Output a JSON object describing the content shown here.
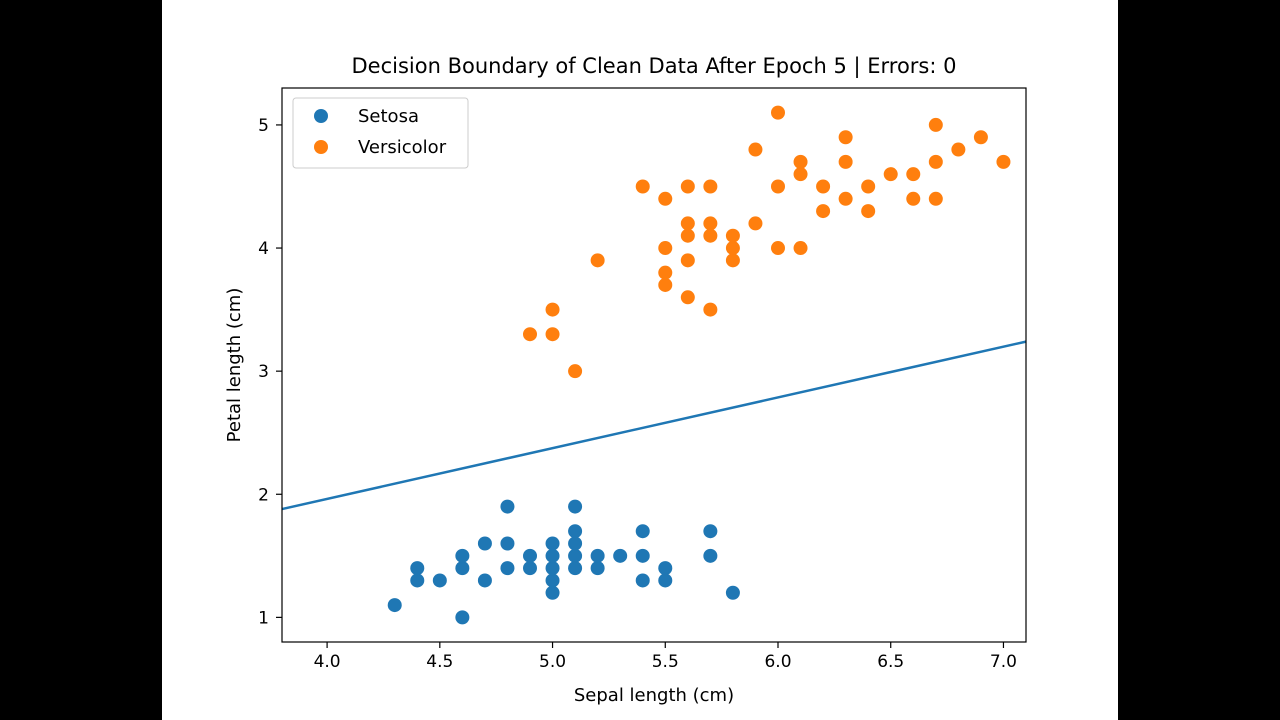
{
  "chart_data": {
    "type": "scatter",
    "title": "Decision Boundary of Clean Data After Epoch 5 | Errors: 0",
    "xlabel": "Sepal length (cm)",
    "ylabel": "Petal length (cm)",
    "xlim": [
      3.8,
      7.1
    ],
    "ylim": [
      0.8,
      5.3
    ],
    "xticks": [
      4.0,
      4.5,
      5.0,
      5.5,
      6.0,
      6.5,
      7.0
    ],
    "xtick_labels": [
      "4.0",
      "4.5",
      "5.0",
      "5.5",
      "6.0",
      "6.5",
      "7.0"
    ],
    "yticks": [
      1,
      2,
      3,
      4,
      5
    ],
    "ytick_labels": [
      "1",
      "2",
      "3",
      "4",
      "5"
    ],
    "grid": false,
    "legend_position": "top-left",
    "series": [
      {
        "name": "Setosa",
        "color": "#1f77b4",
        "points": [
          [
            4.3,
            1.1
          ],
          [
            4.4,
            1.3
          ],
          [
            4.4,
            1.4
          ],
          [
            4.5,
            1.3
          ],
          [
            4.6,
            1.0
          ],
          [
            4.6,
            1.4
          ],
          [
            4.6,
            1.5
          ],
          [
            4.7,
            1.3
          ],
          [
            4.7,
            1.6
          ],
          [
            4.8,
            1.4
          ],
          [
            4.8,
            1.6
          ],
          [
            4.8,
            1.9
          ],
          [
            4.9,
            1.4
          ],
          [
            4.9,
            1.5
          ],
          [
            5.0,
            1.2
          ],
          [
            5.0,
            1.3
          ],
          [
            5.0,
            1.4
          ],
          [
            5.0,
            1.5
          ],
          [
            5.0,
            1.6
          ],
          [
            5.1,
            1.4
          ],
          [
            5.1,
            1.5
          ],
          [
            5.1,
            1.6
          ],
          [
            5.1,
            1.7
          ],
          [
            5.1,
            1.9
          ],
          [
            5.2,
            1.4
          ],
          [
            5.2,
            1.5
          ],
          [
            5.3,
            1.5
          ],
          [
            5.4,
            1.3
          ],
          [
            5.4,
            1.5
          ],
          [
            5.4,
            1.7
          ],
          [
            5.5,
            1.3
          ],
          [
            5.5,
            1.4
          ],
          [
            5.7,
            1.5
          ],
          [
            5.7,
            1.7
          ],
          [
            5.8,
            1.2
          ]
        ]
      },
      {
        "name": "Versicolor",
        "color": "#ff7f0e",
        "points": [
          [
            4.9,
            3.3
          ],
          [
            5.0,
            3.3
          ],
          [
            5.0,
            3.5
          ],
          [
            5.1,
            3.0
          ],
          [
            5.2,
            3.9
          ],
          [
            5.4,
            4.5
          ],
          [
            5.5,
            3.7
          ],
          [
            5.5,
            3.8
          ],
          [
            5.5,
            4.0
          ],
          [
            5.5,
            4.4
          ],
          [
            5.6,
            3.6
          ],
          [
            5.6,
            3.9
          ],
          [
            5.6,
            4.1
          ],
          [
            5.6,
            4.2
          ],
          [
            5.6,
            4.5
          ],
          [
            5.7,
            3.5
          ],
          [
            5.7,
            4.1
          ],
          [
            5.7,
            4.2
          ],
          [
            5.7,
            4.5
          ],
          [
            5.8,
            3.9
          ],
          [
            5.8,
            4.0
          ],
          [
            5.8,
            4.1
          ],
          [
            5.9,
            4.2
          ],
          [
            5.9,
            4.8
          ],
          [
            6.0,
            4.0
          ],
          [
            6.0,
            4.5
          ],
          [
            6.0,
            5.1
          ],
          [
            6.1,
            4.0
          ],
          [
            6.1,
            4.6
          ],
          [
            6.1,
            4.7
          ],
          [
            6.2,
            4.3
          ],
          [
            6.2,
            4.5
          ],
          [
            6.3,
            4.4
          ],
          [
            6.3,
            4.7
          ],
          [
            6.3,
            4.9
          ],
          [
            6.4,
            4.3
          ],
          [
            6.4,
            4.5
          ],
          [
            6.5,
            4.6
          ],
          [
            6.6,
            4.4
          ],
          [
            6.6,
            4.6
          ],
          [
            6.7,
            4.4
          ],
          [
            6.7,
            4.7
          ],
          [
            6.7,
            5.0
          ],
          [
            6.8,
            4.8
          ],
          [
            6.9,
            4.9
          ],
          [
            7.0,
            4.7
          ]
        ]
      }
    ],
    "decision_boundary": {
      "type": "line",
      "color": "#1f77b4",
      "points": [
        [
          3.8,
          1.88
        ],
        [
          7.1,
          3.24
        ]
      ]
    }
  }
}
